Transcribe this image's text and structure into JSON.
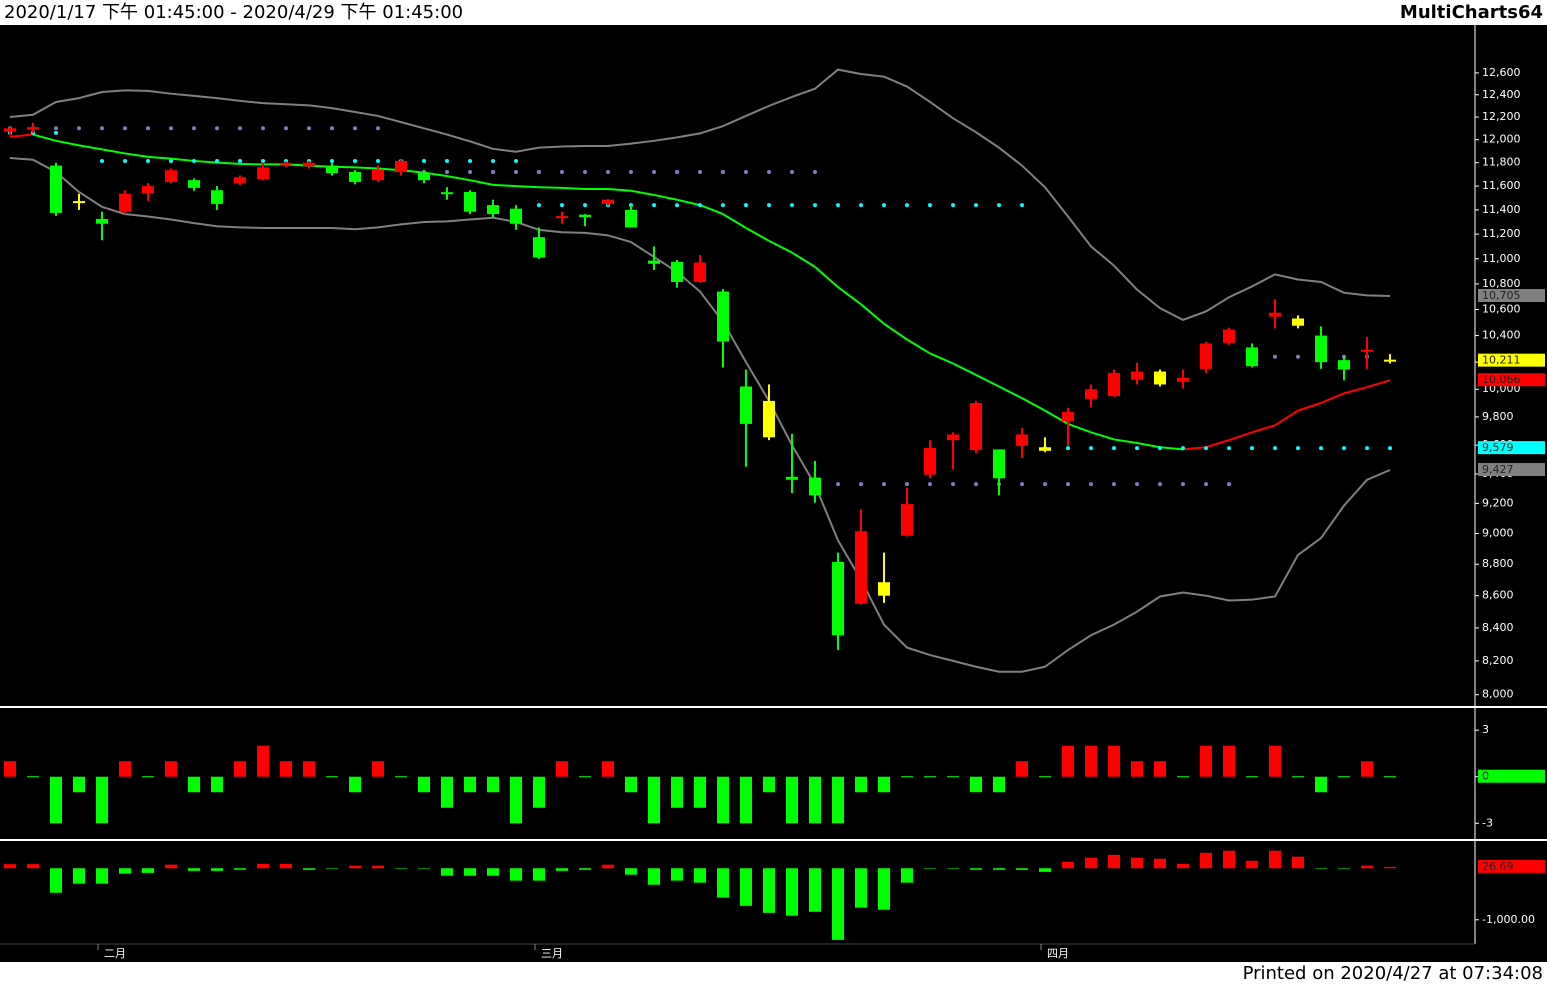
{
  "header": {
    "range": "2020/1/17 下午 01:45:00 - 2020/4/29 下午 01:45:00",
    "app": "MultiCharts64"
  },
  "footer": {
    "printed": "Printed on 2020/4/27 at 07:34:08"
  },
  "chart_data": [
    {
      "type": "candlestick",
      "log_scale": true,
      "categories": [
        null,
        null,
        null,
        null,
        "二月",
        null,
        null,
        null,
        null,
        null,
        null,
        null,
        null,
        null,
        null,
        null,
        null,
        null,
        null,
        null,
        null,
        null,
        null,
        "三月",
        null,
        null,
        null,
        null,
        null,
        null,
        null,
        null,
        null,
        null,
        null,
        null,
        null,
        null,
        null,
        null,
        null,
        null,
        null,
        null,
        null,
        "四月",
        null,
        null,
        null,
        null,
        null,
        null,
        null,
        null,
        null,
        null,
        null,
        null,
        null,
        null,
        null
      ],
      "open": [
        12070,
        12090,
        11775,
        11465,
        11325,
        11385,
        11540,
        11635,
        11650,
        11565,
        11625,
        11660,
        11775,
        11770,
        11775,
        11720,
        11650,
        11720,
        11710,
        11540,
        11550,
        11440,
        11410,
        11175,
        11325,
        11360,
        11450,
        11400,
        10985,
        10975,
        10815,
        10740,
        10020,
        9915,
        9380,
        9375,
        8815,
        8550,
        8685,
        8985,
        9395,
        9635,
        9565,
        9570,
        9595,
        9560,
        9770,
        9930,
        9950,
        10070,
        10035,
        10055,
        10150,
        10345,
        10310,
        10545,
        10530,
        10400,
        10215,
        10270,
        10211
      ],
      "high": [
        12110,
        12150,
        11800,
        11535,
        11385,
        11565,
        11625,
        11750,
        11665,
        11600,
        11690,
        11800,
        11810,
        11815,
        11800,
        11735,
        11775,
        11830,
        11735,
        11590,
        11565,
        11485,
        11440,
        11255,
        11385,
        11365,
        11490,
        11440,
        11100,
        10990,
        11030,
        10760,
        10145,
        10035,
        9680,
        9490,
        8875,
        9160,
        8875,
        9305,
        9635,
        9690,
        9915,
        9570,
        9720,
        9655,
        9865,
        10035,
        10145,
        10195,
        10145,
        10145,
        10355,
        10460,
        10340,
        10680,
        10555,
        10470,
        10240,
        10390,
        10260
      ],
      "low": [
        12040,
        12060,
        11350,
        11400,
        11150,
        11365,
        11475,
        11625,
        11560,
        11400,
        11610,
        11650,
        11760,
        11750,
        11690,
        11615,
        11635,
        11690,
        11625,
        11485,
        11365,
        11340,
        11235,
        11000,
        11285,
        11265,
        11435,
        11255,
        10910,
        10770,
        10810,
        10160,
        9450,
        9635,
        9270,
        9205,
        8265,
        8545,
        8555,
        8980,
        9370,
        9430,
        9545,
        9255,
        9510,
        9550,
        9595,
        9870,
        9945,
        10035,
        10020,
        10005,
        10120,
        10330,
        10160,
        10455,
        10455,
        10150,
        10065,
        10150,
        10190
      ],
      "close": [
        12100,
        12110,
        11375,
        11465,
        11285,
        11535,
        11600,
        11735,
        11585,
        11450,
        11675,
        11760,
        11790,
        11800,
        11710,
        11635,
        11740,
        11815,
        11650,
        11525,
        11385,
        11365,
        11285,
        11010,
        11340,
        11340,
        11485,
        11255,
        10960,
        10815,
        10970,
        10355,
        9750,
        9655,
        9360,
        9255,
        8355,
        9015,
        8600,
        9195,
        9580,
        9675,
        9900,
        9370,
        9675,
        9585,
        9835,
        10000,
        10120,
        10130,
        10130,
        10085,
        10340,
        10445,
        10170,
        10575,
        10475,
        10200,
        10145,
        10285,
        10211
      ],
      "colors": [
        "#ff0000",
        "#ff0000",
        "#00ff00",
        "#ffff00",
        "#00ff00",
        "#ff0000",
        "#ff0000",
        "#ff0000",
        "#00ff00",
        "#00ff00",
        "#ff0000",
        "#ff0000",
        "#ff0000",
        "#ff0000",
        "#00ff00",
        "#00ff00",
        "#ff0000",
        "#ff0000",
        "#00ff00",
        "#00ff00",
        "#00ff00",
        "#00ff00",
        "#00ff00",
        "#00ff00",
        "#ff0000",
        "#00ff00",
        "#ff0000",
        "#00ff00",
        "#00ff00",
        "#00ff00",
        "#ff0000",
        "#00ff00",
        "#00ff00",
        "#ffff00",
        "#00ff00",
        "#00ff00",
        "#00ff00",
        "#ff0000",
        "#ffff00",
        "#ff0000",
        "#ff0000",
        "#ff0000",
        "#ff0000",
        "#00ff00",
        "#ff0000",
        "#ffff00",
        "#ff0000",
        "#ff0000",
        "#ff0000",
        "#ff0000",
        "#ffff00",
        "#ff0000",
        "#ff0000",
        "#ff0000",
        "#00ff00",
        "#ff0000",
        "#ffff00",
        "#00ff00",
        "#00ff00",
        "#ff0000",
        "#ffff00"
      ],
      "bands": [
        {
          "color": "#808080",
          "values": [
            12200,
            12220,
            12335,
            12370,
            12425,
            12440,
            12435,
            12410,
            12390,
            12370,
            12345,
            12325,
            12315,
            12305,
            12280,
            12245,
            12210,
            12155,
            12100,
            12045,
            11985,
            11920,
            11895,
            11930,
            11940,
            11945,
            11945,
            11965,
            11990,
            12020,
            12055,
            12120,
            12210,
            12300,
            12380,
            12455,
            12630,
            12590,
            12565,
            12475,
            12335,
            12190,
            12065,
            11930,
            11775,
            11590,
            11345,
            11100,
            10945,
            10755,
            10610,
            10520,
            10585,
            10695,
            10780,
            10875,
            10835,
            10815,
            10730,
            10710,
            10705
          ]
        },
        {
          "color": "#808080",
          "values": [
            11840,
            11825,
            11720,
            11550,
            11425,
            11365,
            11345,
            11320,
            11290,
            11265,
            11255,
            11250,
            11250,
            11250,
            11250,
            11240,
            11255,
            11280,
            11300,
            11305,
            11320,
            11335,
            11300,
            11235,
            11215,
            11210,
            11190,
            11135,
            11015,
            10895,
            10740,
            10505,
            10200,
            9915,
            9600,
            9325,
            8955,
            8700,
            8420,
            8280,
            8235,
            8200,
            8165,
            8135,
            8135,
            8165,
            8265,
            8355,
            8420,
            8500,
            8595,
            8620,
            8600,
            8570,
            8575,
            8595,
            8860,
            8970,
            9185,
            9360,
            9427
          ]
        }
      ],
      "average": {
        "rising_color": "#ff0000",
        "falling_color": "#00ff00",
        "values": [
          12025,
          12045,
          11990,
          11950,
          11915,
          11880,
          11850,
          11835,
          11815,
          11800,
          11790,
          11785,
          11785,
          11775,
          11765,
          11760,
          11750,
          11735,
          11715,
          11685,
          11650,
          11610,
          11600,
          11590,
          11585,
          11575,
          11575,
          11560,
          11525,
          11485,
          11440,
          11365,
          11250,
          11145,
          11050,
          10935,
          10775,
          10640,
          10490,
          10370,
          10265,
          10190,
          10105,
          10020,
          9935,
          9845,
          9750,
          9690,
          9640,
          9615,
          9585,
          9570,
          9585,
          9635,
          9690,
          9740,
          9845,
          9900,
          9970,
          10015,
          10066
        ]
      },
      "levels": [
        {
          "value": 12100,
          "from": 0,
          "to": 16,
          "color": "#8080c0"
        },
        {
          "value": 12060,
          "from": 0,
          "to": 2,
          "color": "#00ffff"
        },
        {
          "value": 11815,
          "from": 4,
          "to": 22,
          "color": "#00ffff"
        },
        {
          "value": 11720,
          "from": 18,
          "to": 35,
          "color": "#8080c0"
        },
        {
          "value": 11440,
          "from": 23,
          "to": 44,
          "color": "#00ffff"
        },
        {
          "value": 9330,
          "from": 36,
          "to": 53,
          "color": "#8080c0"
        },
        {
          "value": 9579,
          "from": 45,
          "to": 60,
          "color": "#00ffff"
        },
        {
          "value": 10240,
          "from": 54,
          "to": 59,
          "color": "#8080c0"
        }
      ],
      "tags": [
        {
          "value": 10705,
          "label": "10,705",
          "color": "#808080"
        },
        {
          "value": 10211,
          "label": "10,211",
          "color": "#ffff00"
        },
        {
          "value": 10066,
          "label": "10,066",
          "color": "#ff0000"
        },
        {
          "value": 9579,
          "label": "9,579",
          "color": "#00ffff"
        },
        {
          "value": 9427,
          "label": "9,427",
          "color": "#808080"
        }
      ],
      "ylim": [
        7940,
        13020
      ],
      "yticks": [
        {
          "value": 8000,
          "label": "8,000"
        },
        {
          "value": 8200,
          "label": "8,200"
        },
        {
          "value": 8400,
          "label": "8,400"
        },
        {
          "value": 8600,
          "label": "8,600"
        },
        {
          "value": 8800,
          "label": "8,800"
        },
        {
          "value": 9000,
          "label": "9,000"
        },
        {
          "value": 9200,
          "label": "9,200"
        },
        {
          "value": 9400,
          "label": "9,400"
        },
        {
          "value": 9600,
          "label": "9,600"
        },
        {
          "value": 9800,
          "label": "9,800"
        },
        {
          "value": 10000,
          "label": "10,000"
        },
        {
          "value": 10200,
          "label": "10,200"
        },
        {
          "value": 10400,
          "label": "10,400"
        },
        {
          "value": 10600,
          "label": "10,600"
        },
        {
          "value": 10800,
          "label": "10,800"
        },
        {
          "value": 11000,
          "label": "11,000"
        },
        {
          "value": 11200,
          "label": "11,200"
        },
        {
          "value": 11400,
          "label": "11,400"
        },
        {
          "value": 11600,
          "label": "11,600"
        },
        {
          "value": 11800,
          "label": "11,800"
        },
        {
          "value": 12000,
          "label": "12,000"
        },
        {
          "value": 12200,
          "label": "12,200"
        },
        {
          "value": 12400,
          "label": "12,400"
        },
        {
          "value": 12600,
          "label": "12,600"
        }
      ]
    },
    {
      "type": "bar",
      "up_color": "#ff0000",
      "down_color": "#00ff00",
      "tag_color": "#00ff00",
      "values": [
        1,
        0,
        -3,
        -1,
        -3,
        1,
        0,
        1,
        -1,
        -1,
        1,
        2,
        1,
        1,
        0,
        -1,
        1,
        0,
        -1,
        -2,
        -1,
        -1,
        -3,
        -2,
        1,
        0,
        1,
        -1,
        -3,
        -2,
        -2,
        -3,
        -3,
        -1,
        -3,
        -3,
        -3,
        -1,
        -1,
        0,
        0,
        0,
        -1,
        -1,
        1,
        0,
        2,
        2,
        2,
        1,
        1,
        0,
        2,
        2,
        0,
        2,
        0,
        -1,
        0,
        1,
        0
      ],
      "ylim": [
        -3.95,
        4.3
      ],
      "yticks": [
        3,
        0,
        -3
      ]
    },
    {
      "type": "bar",
      "up_color": "#ff0000",
      "down_color": "#00ff00",
      "tag_color": "#ff0000",
      "values": [
        80,
        80,
        -475,
        -300,
        -300,
        -105,
        -90,
        70,
        -50,
        -50,
        -30,
        85,
        85,
        -30,
        -10,
        50,
        50,
        -10,
        -10,
        -145,
        -145,
        -145,
        -240,
        -240,
        -50,
        -30,
        70,
        -125,
        -320,
        -240,
        -280,
        -570,
        -730,
        -865,
        -920,
        -845,
        -1390,
        -765,
        -805,
        -280,
        -10,
        -10,
        -30,
        -30,
        -30,
        -70,
        125,
        205,
        260,
        205,
        185,
        85,
        300,
        340,
        145,
        340,
        225,
        -10,
        -10,
        50,
        26.69
      ],
      "ylim": [
        -1470,
        490
      ],
      "yticks": [
        {
          "value": -1000,
          "label": "-1,000.00"
        }
      ]
    }
  ]
}
